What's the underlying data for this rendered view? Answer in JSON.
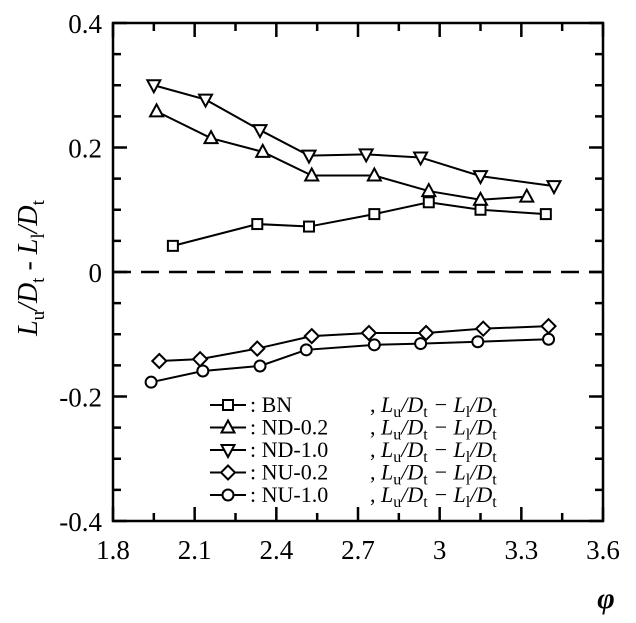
{
  "chart_data": {
    "type": "line",
    "xlabel": "φ",
    "ylabel_parts": [
      "L",
      "u",
      "/D",
      "t",
      " - L",
      "l",
      "/D",
      "t"
    ],
    "xlim": [
      1.8,
      3.6
    ],
    "ylim": [
      -0.4,
      0.4
    ],
    "xticks": [
      1.8,
      2.1,
      2.4,
      2.7,
      3.0,
      3.3,
      3.6
    ],
    "xtick_labels": [
      "1.8",
      "2.1",
      "2.4",
      "2.7",
      "3",
      "3.3",
      "3.6"
    ],
    "yticks": [
      -0.4,
      -0.2,
      0,
      0.2,
      0.4
    ],
    "ytick_labels": [
      "-0.4",
      "-0.2",
      "0",
      "0.2",
      "0.4"
    ],
    "zero_line": "dashed",
    "legend_placement": "lower-center",
    "series": [
      {
        "name": "BN",
        "marker": "square",
        "x": [
          2.02,
          2.33,
          2.52,
          2.76,
          2.96,
          3.15,
          3.39
        ],
        "y": [
          0.042,
          0.077,
          0.073,
          0.093,
          0.112,
          0.1,
          0.093
        ]
      },
      {
        "name": "ND-0.2",
        "marker": "triangle-up",
        "x": [
          1.96,
          2.16,
          2.35,
          2.53,
          2.76,
          2.96,
          3.15,
          3.32
        ],
        "y": [
          0.258,
          0.215,
          0.193,
          0.155,
          0.155,
          0.13,
          0.116,
          0.121
        ]
      },
      {
        "name": "ND-1.0",
        "marker": "triangle-down",
        "x": [
          1.95,
          2.14,
          2.34,
          2.52,
          2.73,
          2.93,
          3.15,
          3.42
        ],
        "y": [
          0.3,
          0.277,
          0.228,
          0.187,
          0.189,
          0.184,
          0.154,
          0.138
        ]
      },
      {
        "name": "NU-0.2",
        "marker": "diamond",
        "x": [
          1.97,
          2.12,
          2.33,
          2.53,
          2.74,
          2.95,
          3.16,
          3.4
        ],
        "y": [
          -0.143,
          -0.14,
          -0.123,
          -0.103,
          -0.098,
          -0.098,
          -0.091,
          -0.087
        ]
      },
      {
        "name": "NU-1.0",
        "marker": "circle",
        "x": [
          1.94,
          2.13,
          2.34,
          2.51,
          2.76,
          2.93,
          3.14,
          3.4
        ],
        "y": [
          -0.177,
          -0.159,
          -0.151,
          -0.125,
          -0.117,
          -0.115,
          -0.112,
          -0.108
        ]
      }
    ],
    "legend": {
      "prefix": ":",
      "expression_parts": [
        "L",
        "u",
        "/D",
        "t",
        " − L",
        "l",
        "/D",
        "t"
      ]
    }
  }
}
